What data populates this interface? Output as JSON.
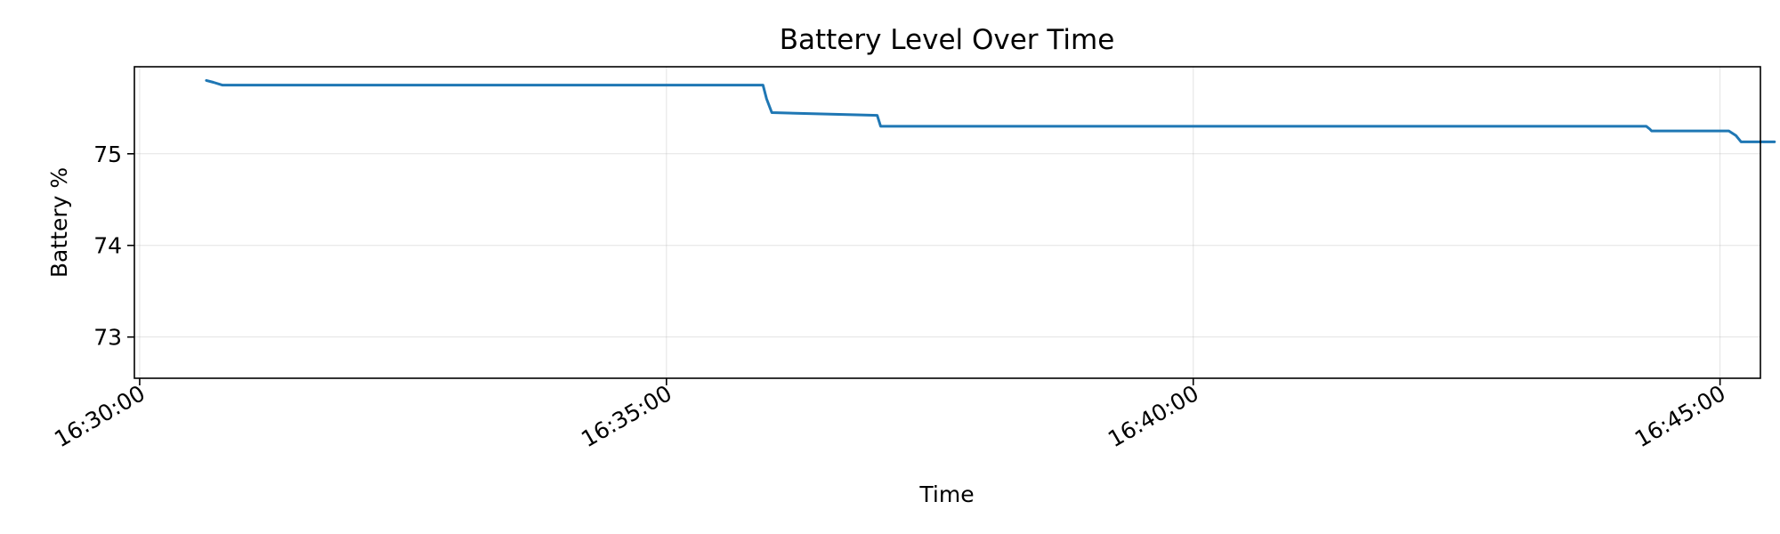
{
  "chart_data": {
    "type": "line",
    "title": "Battery Level Over Time",
    "xlabel": "Time",
    "ylabel": "Battery %",
    "x_tick_labels": [
      "16:30:00",
      "16:35:00",
      "16:40:00",
      "16:45:00"
    ],
    "y_tick_labels": [
      "73",
      "74",
      "75"
    ],
    "y_ticks": [
      73,
      74,
      75
    ],
    "xlim": [
      "16:29:57",
      "16:45:23"
    ],
    "ylim": [
      72.55,
      75.95
    ],
    "grid": true,
    "line_color": "#1f77b4",
    "series": [
      {
        "x": [
          "16:30:38",
          "16:30:42",
          "16:30:47",
          "16:35:55",
          "16:35:57",
          "16:36:00",
          "16:37:00",
          "16:37:02",
          "16:37:04",
          "16:37:06",
          "16:44:18",
          "16:44:20",
          "16:44:21",
          "16:44:23",
          "16:44:25",
          "16:44:28",
          "16:45:00",
          "16:45:05",
          "16:45:09",
          "16:45:12",
          "16:45:13",
          "16:45:15",
          "16:45:17",
          "16:45:19",
          "16:45:21",
          "16:45:23",
          "16:45:25",
          "16:45:27",
          "16:45:29",
          "16:45:31"
        ],
        "y": [
          75.8,
          75.78,
          75.75,
          75.75,
          75.6,
          75.45,
          75.42,
          75.3,
          75.3,
          75.3,
          75.3,
          75.27,
          75.25,
          75.25,
          75.25,
          75.25,
          75.25,
          75.25,
          75.2,
          75.13,
          75.13,
          75.13,
          75.13,
          75.13,
          75.13,
          75.13,
          75.13,
          75.13,
          75.13,
          75.13
        ]
      }
    ]
  }
}
